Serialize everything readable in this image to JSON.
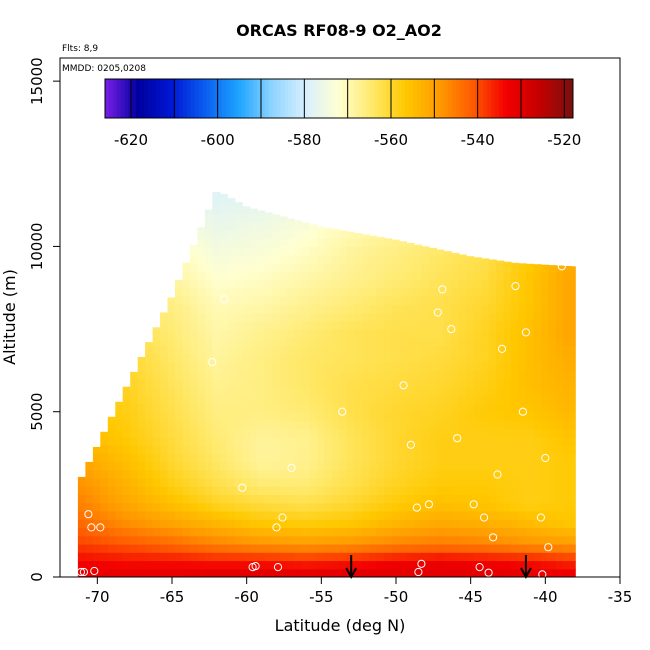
{
  "chart_data": {
    "type": "heatmap",
    "title": "ORCAS RF08-9 O2_AO2",
    "xlabel": "Latitude (deg N)",
    "ylabel": "Altitude (m)",
    "xlim": [
      -72.5,
      -35
    ],
    "ylim": [
      0,
      15700
    ],
    "x_ticks": [
      -70,
      -65,
      -60,
      -55,
      -50,
      -45,
      -40,
      -35
    ],
    "y_ticks": [
      0,
      5000,
      10000,
      15000
    ],
    "notes": {
      "flights": "Flts: 8,9",
      "dates": "MMDD: 0205,0208"
    },
    "colorbar": {
      "range": [
        -626,
        -518
      ],
      "ticks": [
        -620,
        -600,
        -580,
        -560,
        -540,
        -520
      ],
      "colors": [
        "#7a1fe8",
        "#00009e",
        "#0018d4",
        "#0a5ef0",
        "#1ea4ff",
        "#8fd4ff",
        "#d8f0ff",
        "#ffffd0",
        "#ffe96a",
        "#ffc800",
        "#ff9a00",
        "#ff5a00",
        "#f20000",
        "#c40000",
        "#7a1010"
      ]
    },
    "field": {
      "description_values": "gridded O2_AO2 curtain, values in colorbar units",
      "lat_min": -71.3,
      "lat_max": -38.0,
      "upper_boundary": [
        [
          -71.3,
          2800
        ],
        [
          -68,
          5800
        ],
        [
          -65,
          8500
        ],
        [
          -62,
          11700
        ],
        [
          -60,
          11200
        ],
        [
          -55,
          10600
        ],
        [
          -50,
          10200
        ],
        [
          -45,
          9700
        ],
        [
          -42,
          9500
        ],
        [
          -38.2,
          9400
        ]
      ],
      "grid_values": {
        "alts": [
          150,
          500,
          1000,
          1600,
          2200,
          2800,
          3500,
          4200,
          5000,
          5800,
          6600,
          7400,
          8200,
          9000,
          9800,
          10600,
          11400
        ],
        "lats": [
          -71,
          -68,
          -65,
          -62,
          -59,
          -56,
          -53,
          -50,
          -47,
          -44,
          -41,
          -38.5
        ],
        "rows": [
          [
            -532,
            -532,
            -532,
            -531,
            -531,
            -532,
            -531,
            -531,
            -531,
            -531,
            -532,
            -533
          ],
          [
            -534,
            -535,
            -535,
            -536,
            -536,
            -537,
            -536,
            -534,
            -533,
            -534,
            -535,
            -537
          ],
          [
            -539,
            -541,
            -543,
            -546,
            -548,
            -549,
            -548,
            -546,
            -545,
            -546,
            -548,
            -549
          ],
          [
            -543,
            -547,
            -550,
            -553,
            -556,
            -557,
            -556,
            -553,
            -551,
            -552,
            -554,
            -556
          ],
          [
            -546,
            -551,
            -555,
            -559,
            -561,
            -562,
            -560,
            -557,
            -555,
            -556,
            -558,
            -557
          ],
          [
            -548,
            -553,
            -558,
            -562,
            -565,
            -565,
            -562,
            -559,
            -557,
            -557,
            -558,
            -557
          ],
          [
            -551,
            -555,
            -560,
            -564,
            -568,
            -567,
            -563,
            -560,
            -558,
            -558,
            -558,
            -557
          ],
          [
            -554,
            -557,
            -561,
            -565,
            -568,
            -567,
            -563,
            -560,
            -558,
            -558,
            -558,
            -556
          ],
          [
            -556,
            -558,
            -562,
            -566,
            -566,
            -565,
            -562,
            -560,
            -559,
            -557,
            -556,
            -554
          ],
          [
            -557,
            -559,
            -563,
            -567,
            -566,
            -564,
            -562,
            -561,
            -560,
            -558,
            -555,
            -553
          ],
          [
            -560,
            -560,
            -564,
            -568,
            -566,
            -564,
            -563,
            -562,
            -561,
            -559,
            -555,
            -552
          ],
          [
            -562,
            -562,
            -565,
            -569,
            -567,
            -565,
            -563,
            -562,
            -562,
            -559,
            -555,
            -551
          ],
          [
            -564,
            -564,
            -566,
            -570,
            -569,
            -567,
            -565,
            -563,
            -562,
            -560,
            -556,
            -551
          ],
          [
            -566,
            -566,
            -568,
            -572,
            -571,
            -569,
            -567,
            -565,
            -563,
            -561,
            -556,
            -551
          ],
          [
            -568,
            -568,
            -570,
            -574,
            -573,
            -571,
            -568,
            -566,
            -564,
            -562,
            -557,
            -552
          ],
          [
            -570,
            -570,
            -573,
            -576,
            -575,
            -573,
            -570,
            -568,
            -566,
            -564,
            -559,
            -554
          ],
          [
            -572,
            -572,
            -575,
            -578,
            -577,
            -575,
            -572,
            -570,
            -568,
            -566,
            -561,
            -556
          ]
        ]
      }
    },
    "observation_points": [
      [
        -71.1,
        150
      ],
      [
        -70.9,
        150
      ],
      [
        -70.2,
        180
      ],
      [
        -70.6,
        1900
      ],
      [
        -70.4,
        1500
      ],
      [
        -69.8,
        1500
      ],
      [
        -62.3,
        6500
      ],
      [
        -61.5,
        8400
      ],
      [
        -60.3,
        2700
      ],
      [
        -59.6,
        300
      ],
      [
        -59.4,
        330
      ],
      [
        -58.0,
        1500
      ],
      [
        -57.6,
        1800
      ],
      [
        -57.9,
        300
      ],
      [
        -57.0,
        3300
      ],
      [
        -53.6,
        5000
      ],
      [
        -49.5,
        5800
      ],
      [
        -49.0,
        4000
      ],
      [
        -48.6,
        2100
      ],
      [
        -48.3,
        400
      ],
      [
        -48.5,
        150
      ],
      [
        -47.8,
        2200
      ],
      [
        -47.2,
        8000
      ],
      [
        -46.9,
        8700
      ],
      [
        -46.3,
        7500
      ],
      [
        -45.9,
        4200
      ],
      [
        -44.8,
        2200
      ],
      [
        -44.4,
        300
      ],
      [
        -44.1,
        1800
      ],
      [
        -43.8,
        130
      ],
      [
        -43.2,
        3100
      ],
      [
        -43.5,
        1200
      ],
      [
        -42.9,
        6900
      ],
      [
        -42.0,
        8800
      ],
      [
        -41.3,
        7400
      ],
      [
        -41.5,
        5000
      ],
      [
        -40.3,
        1800
      ],
      [
        -40.0,
        3600
      ],
      [
        -39.8,
        900
      ],
      [
        -40.2,
        80
      ],
      [
        -38.9,
        9400
      ]
    ],
    "arrows_lat": [
      -53,
      -41.3
    ]
  }
}
